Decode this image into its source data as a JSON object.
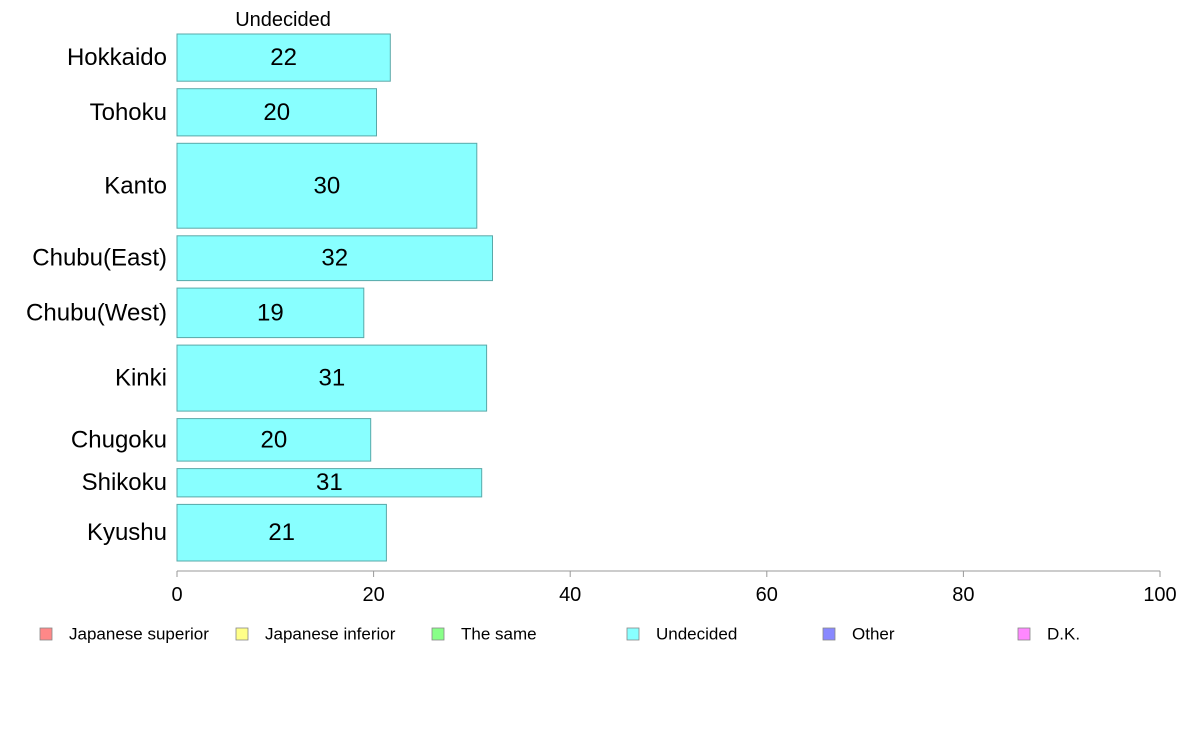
{
  "chart_data": {
    "type": "bar",
    "orientation": "horizontal",
    "title": "Undecided",
    "categories": [
      "Hokkaido",
      "Tohoku",
      "Kanto",
      "Chubu(East)",
      "Chubu(West)",
      "Kinki",
      "Chugoku",
      "Shikoku",
      "Kyushu"
    ],
    "bar_thickness": [
      1.0,
      1.0,
      1.8,
      0.95,
      1.05,
      1.4,
      0.9,
      0.6,
      1.2
    ],
    "series": [
      {
        "name": "Undecided",
        "values": [
          22,
          20,
          30,
          32,
          19,
          31,
          20,
          31,
          21
        ],
        "precise": [
          21.7,
          20.3,
          30.5,
          32.1,
          19.0,
          31.5,
          19.7,
          31.0,
          21.3
        ],
        "color": "#88ffff"
      }
    ],
    "xlim": [
      0,
      100
    ],
    "xticks": [
      0,
      20,
      40,
      60,
      80,
      100
    ],
    "xlabel": "",
    "ylabel": "",
    "grid": false,
    "legend_position": "bottom",
    "legend": [
      {
        "label": "Japanese superior",
        "color": "#ff8888"
      },
      {
        "label": "Japanese inferior",
        "color": "#ffff88"
      },
      {
        "label": "The same",
        "color": "#88ff88"
      },
      {
        "label": "Undecided",
        "color": "#88ffff"
      },
      {
        "label": "Other",
        "color": "#8888ff"
      },
      {
        "label": "D.K.",
        "color": "#ff88ff"
      }
    ]
  }
}
